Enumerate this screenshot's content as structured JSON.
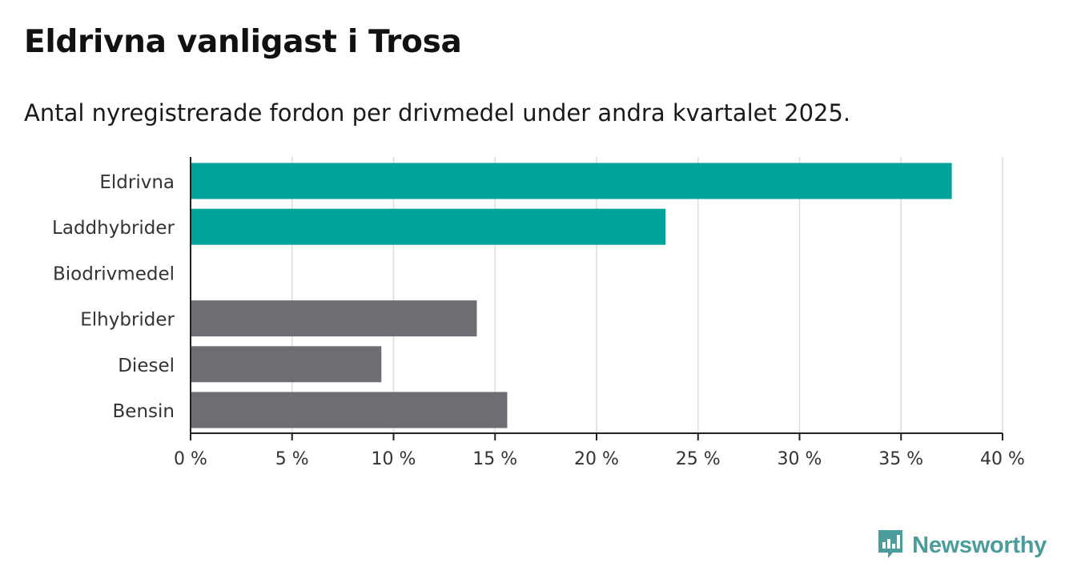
{
  "title": "Eldrivna vanligast i Trosa",
  "subtitle": "Antal nyregistrerade fordon per drivmedel under andra kvartalet 2025.",
  "brand": {
    "name": "Newsworthy",
    "color": "#4a9d9a",
    "icon": "bar-chart-speech-bubble-icon"
  },
  "colors": {
    "highlight": "#00a39a",
    "other": "#6e6d73",
    "grid": "#dcdcdc",
    "axis": "#222222",
    "text": "#333333"
  },
  "chart_data": {
    "type": "bar",
    "orientation": "horizontal",
    "title": "Eldrivna vanligast i Trosa",
    "subtitle": "Antal nyregistrerade fordon per drivmedel under andra kvartalet 2025.",
    "unit": "%",
    "categories": [
      "Eldrivna",
      "Laddhybrider",
      "Biodrivmedel",
      "Elhybrider",
      "Diesel",
      "Bensin"
    ],
    "values": [
      37.5,
      23.4,
      0,
      14.1,
      9.4,
      15.6
    ],
    "highlighted": [
      true,
      true,
      false,
      false,
      false,
      false
    ],
    "xlim": [
      0,
      40
    ],
    "xticks": [
      0,
      5,
      10,
      15,
      20,
      25,
      30,
      35,
      40
    ],
    "xtick_labels": [
      "0 %",
      "5 %",
      "10 %",
      "15 %",
      "20 %",
      "25 %",
      "30 %",
      "35 %",
      "40 %"
    ],
    "grid": "vertical",
    "legend": "none"
  }
}
